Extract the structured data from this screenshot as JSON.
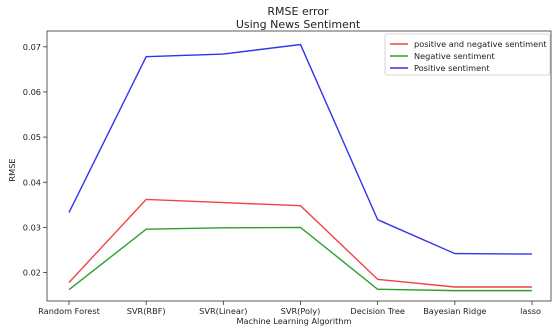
{
  "chart_data": {
    "type": "line",
    "title": "RMSE error",
    "subtitle": "Using News Sentiment",
    "xlabel": "Machine Learning Algorithm",
    "ylabel": "RMSE",
    "categories": [
      "Random Forest",
      "SVR(RBF)",
      "SVR(Linear)",
      "SVR(Poly)",
      "Decision Tree",
      "Bayesian Ridge",
      "lasso"
    ],
    "ylim": [
      0.0137,
      0.0735
    ],
    "yticks": [
      0.02,
      0.03,
      0.04,
      0.05,
      0.06,
      0.07
    ],
    "ytick_labels": [
      "0.02",
      "0.03",
      "0.04",
      "0.05",
      "0.06",
      "0.07"
    ],
    "grid": false,
    "legend_position": "top-right",
    "series": [
      {
        "name": "positive and negative sentiment",
        "color": "#ef4444",
        "values": [
          0.0178,
          0.0362,
          0.0355,
          0.0348,
          0.0185,
          0.0168,
          0.0168
        ]
      },
      {
        "name": "Negative sentiment",
        "color": "#2f9e2f",
        "values": [
          0.0162,
          0.0296,
          0.0299,
          0.03,
          0.0163,
          0.016,
          0.016
        ]
      },
      {
        "name": "Positive sentiment",
        "color": "#3333ee",
        "values": [
          0.0333,
          0.0678,
          0.0684,
          0.0705,
          0.0317,
          0.0242,
          0.0241
        ]
      }
    ]
  }
}
